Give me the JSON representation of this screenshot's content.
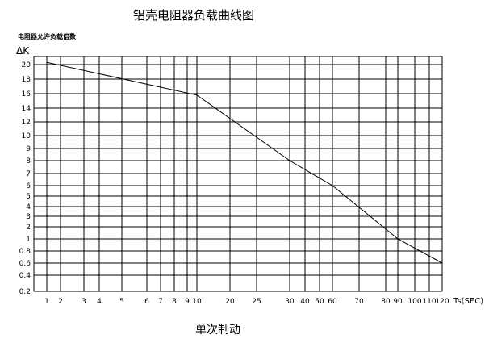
{
  "chart_data": {
    "type": "line",
    "title": "铝壳电阻器负载曲线图",
    "subtitle": "电阻器允许负载倍数",
    "ylabel": "ΔK",
    "xlabel": "Ts(SEC)",
    "footer": "单次制动",
    "grid": true,
    "x_categories": [
      "1",
      "2",
      "3",
      "4",
      "5",
      "6",
      "7",
      "8",
      "9",
      "10",
      "20",
      "25",
      "30",
      "40",
      "50",
      "60",
      "70",
      "80",
      "90",
      "100",
      "110",
      "120"
    ],
    "y_ticks": [
      "20",
      "18",
      "16",
      "14",
      "12",
      "10",
      "9",
      "8",
      "7",
      "6",
      "5",
      "4",
      "3",
      "2",
      "1",
      "0.8",
      "0.6",
      "0.4",
      "0.2"
    ],
    "series": [
      {
        "x": [
          "1",
          "10",
          "30",
          "60",
          "90",
          "120"
        ],
        "y": [
          20.3,
          15.8,
          8,
          6,
          1,
          0.6
        ]
      }
    ]
  }
}
